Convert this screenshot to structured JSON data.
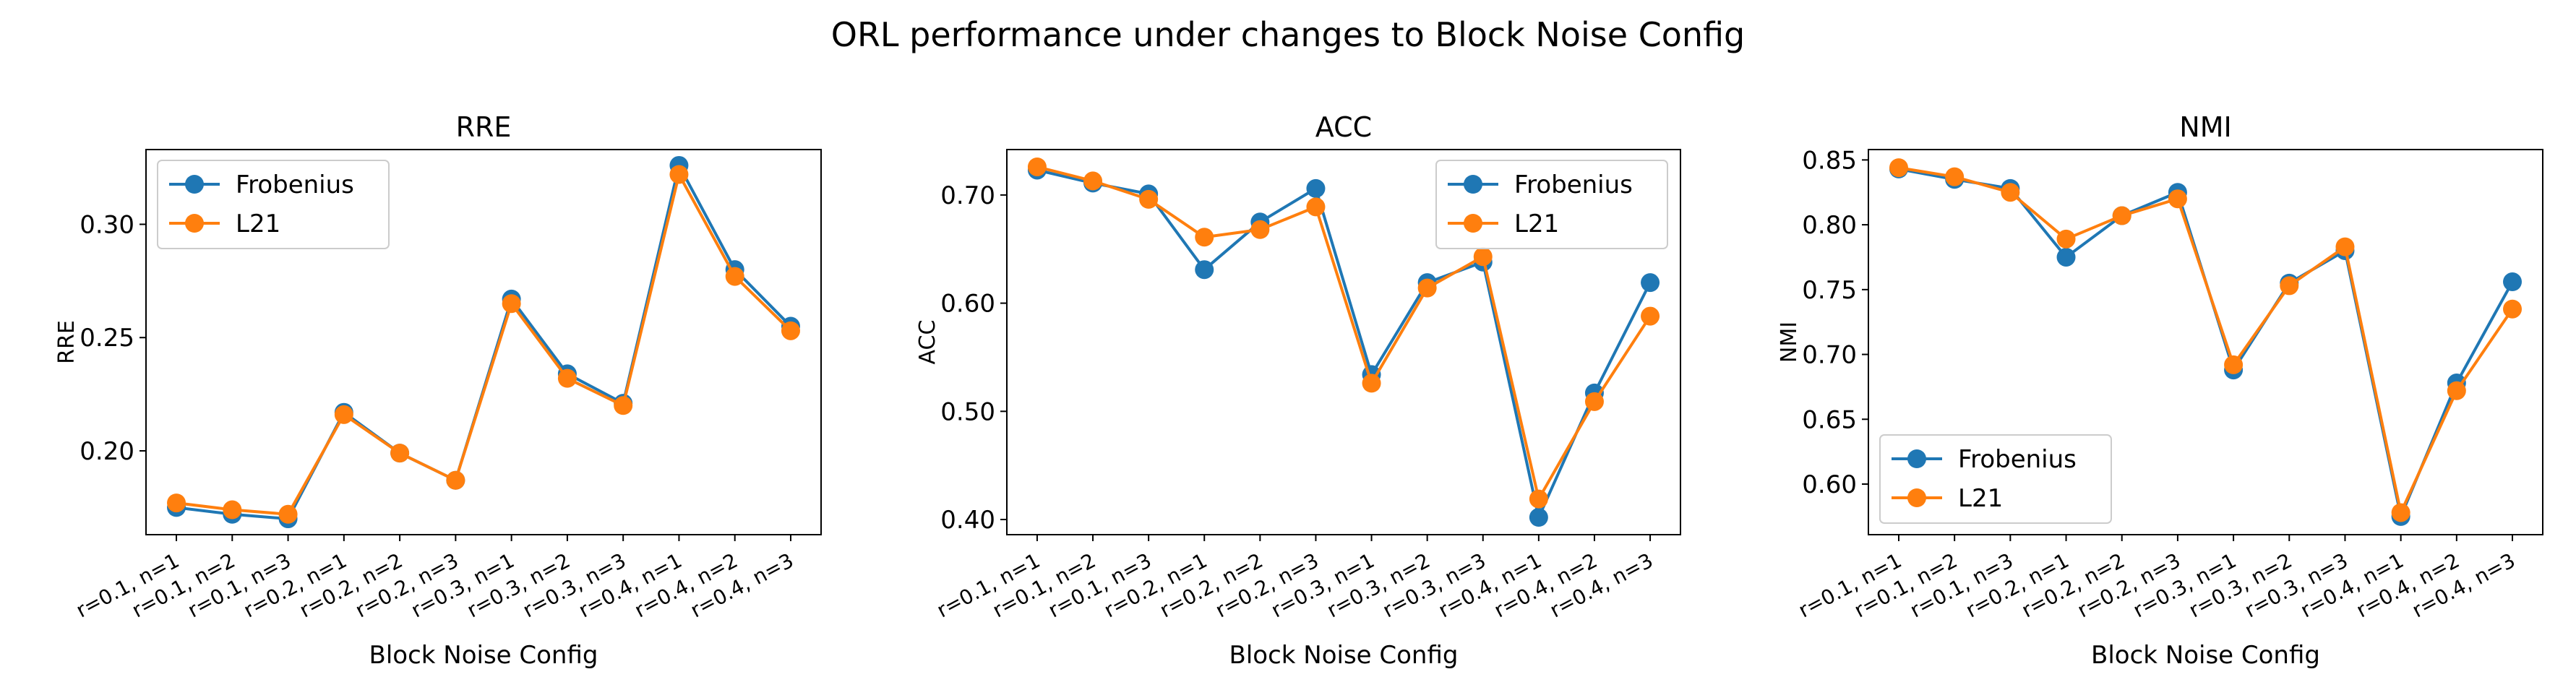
{
  "suptitle": "ORL performance under changes to Block Noise Config",
  "chart_data": [
    {
      "type": "line",
      "title": "RRE",
      "xlabel": "Block Noise Config",
      "ylabel": "RRE",
      "categories": [
        "r=0.1, n=1",
        "r=0.1, n=2",
        "r=0.1, n=3",
        "r=0.2, n=1",
        "r=0.2, n=2",
        "r=0.2, n=3",
        "r=0.3, n=1",
        "r=0.3, n=2",
        "r=0.3, n=3",
        "r=0.4, n=1",
        "r=0.4, n=2",
        "r=0.4, n=3"
      ],
      "ylim": [
        0.163,
        0.333
      ],
      "yticks": [
        0.2,
        0.25,
        0.3
      ],
      "ytick_labels": [
        "0.20",
        "0.25",
        "0.30"
      ],
      "legend_position": "upper left",
      "series": [
        {
          "name": "Frobenius",
          "color": "#1f77b4",
          "values": [
            0.175,
            0.172,
            0.17,
            0.217,
            0.199,
            0.187,
            0.267,
            0.234,
            0.221,
            0.326,
            0.28,
            0.255
          ]
        },
        {
          "name": "L21",
          "color": "#ff7f0e",
          "values": [
            0.177,
            0.174,
            0.172,
            0.216,
            0.199,
            0.187,
            0.265,
            0.232,
            0.22,
            0.322,
            0.277,
            0.253
          ]
        }
      ]
    },
    {
      "type": "line",
      "title": "ACC",
      "xlabel": "Block Noise Config",
      "ylabel": "ACC",
      "categories": [
        "r=0.1, n=1",
        "r=0.1, n=2",
        "r=0.1, n=3",
        "r=0.2, n=1",
        "r=0.2, n=2",
        "r=0.2, n=3",
        "r=0.3, n=1",
        "r=0.3, n=2",
        "r=0.3, n=3",
        "r=0.4, n=1",
        "r=0.4, n=2",
        "r=0.4, n=3"
      ],
      "ylim": [
        0.386,
        0.742
      ],
      "yticks": [
        0.4,
        0.5,
        0.6,
        0.7
      ],
      "ytick_labels": [
        "0.40",
        "0.50",
        "0.60",
        "0.70"
      ],
      "legend_position": "upper right",
      "series": [
        {
          "name": "Frobenius",
          "color": "#1f77b4",
          "values": [
            0.723,
            0.711,
            0.701,
            0.631,
            0.675,
            0.706,
            0.534,
            0.619,
            0.638,
            0.402,
            0.517,
            0.619
          ]
        },
        {
          "name": "L21",
          "color": "#ff7f0e",
          "values": [
            0.726,
            0.713,
            0.696,
            0.661,
            0.668,
            0.689,
            0.526,
            0.614,
            0.643,
            0.419,
            0.509,
            0.588
          ]
        }
      ]
    },
    {
      "type": "line",
      "title": "NMI",
      "xlabel": "Block Noise Config",
      "ylabel": "NMI",
      "categories": [
        "r=0.1, n=1",
        "r=0.1, n=2",
        "r=0.1, n=3",
        "r=0.2, n=1",
        "r=0.2, n=2",
        "r=0.2, n=3",
        "r=0.3, n=1",
        "r=0.3, n=2",
        "r=0.3, n=3",
        "r=0.4, n=1",
        "r=0.4, n=2",
        "r=0.4, n=3"
      ],
      "ylim": [
        0.561,
        0.858
      ],
      "yticks": [
        0.6,
        0.65,
        0.7,
        0.75,
        0.8,
        0.85
      ],
      "ytick_labels": [
        "0.60",
        "0.65",
        "0.70",
        "0.75",
        "0.80",
        "0.85"
      ],
      "legend_position": "lower left",
      "series": [
        {
          "name": "Frobenius",
          "color": "#1f77b4",
          "values": [
            0.843,
            0.835,
            0.828,
            0.775,
            0.807,
            0.825,
            0.688,
            0.755,
            0.78,
            0.575,
            0.678,
            0.756
          ]
        },
        {
          "name": "L21",
          "color": "#ff7f0e",
          "values": [
            0.844,
            0.837,
            0.825,
            0.789,
            0.807,
            0.82,
            0.692,
            0.753,
            0.783,
            0.578,
            0.672,
            0.735
          ]
        }
      ]
    }
  ]
}
